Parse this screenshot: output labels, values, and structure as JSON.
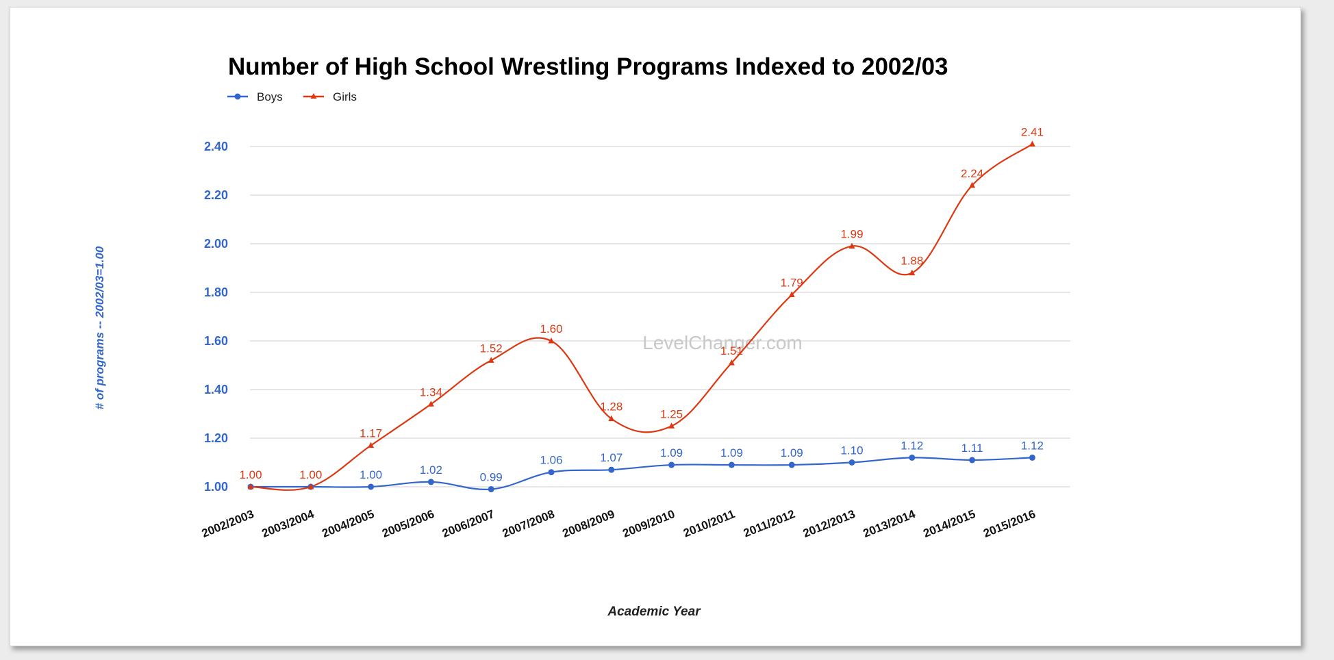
{
  "chart_data": {
    "type": "line",
    "title": "Number of High School Wrestling Programs Indexed to 2002/03",
    "xlabel": "Academic Year",
    "ylabel": "# of programs -- 2002/03=1.00",
    "watermark": "LevelChanger.com",
    "categories": [
      "2002/2003",
      "2003/2004",
      "2004/2005",
      "2005/2006",
      "2006/2007",
      "2007/2008",
      "2008/2009",
      "2009/2010",
      "2010/2011",
      "2011/2012",
      "2012/2013",
      "2013/2014",
      "2014/2015",
      "2015/2016"
    ],
    "series": [
      {
        "name": "Boys",
        "color": "#3366cc",
        "marker": "circle",
        "values": [
          1.0,
          1.0,
          1.0,
          1.02,
          0.99,
          1.06,
          1.07,
          1.09,
          1.09,
          1.09,
          1.1,
          1.12,
          1.11,
          1.12
        ],
        "labels": [
          "",
          "",
          "1.00",
          "1.02",
          "0.99",
          "1.06",
          "1.07",
          "1.09",
          "1.09",
          "1.09",
          "1.10",
          "1.12",
          "1.11",
          "1.12"
        ]
      },
      {
        "name": "Girls",
        "color": "#dc3912",
        "marker": "triangle",
        "values": [
          1.0,
          1.0,
          1.17,
          1.34,
          1.52,
          1.6,
          1.28,
          1.25,
          1.51,
          1.79,
          1.99,
          1.88,
          2.24,
          2.41
        ],
        "labels": [
          "1.00",
          "1.00",
          "1.17",
          "1.34",
          "1.52",
          "1.60",
          "1.28",
          "1.25",
          "1.51",
          "1.79",
          "1.99",
          "1.88",
          "2.24",
          "2.41"
        ]
      }
    ],
    "ylim": [
      1.0,
      2.4
    ],
    "yticks": [
      "1.00",
      "1.20",
      "1.40",
      "1.60",
      "1.80",
      "2.00",
      "2.20",
      "2.40"
    ],
    "grid": true,
    "legend": "top-left",
    "axis_color": "#3366cc"
  }
}
